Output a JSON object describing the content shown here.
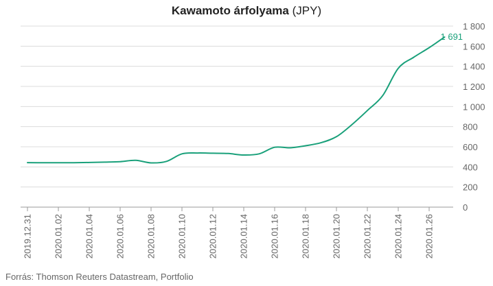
{
  "chart_data": {
    "type": "line",
    "title_bold": "Kawamoto árfolyama",
    "title_unit": "(JPY)",
    "source": "Forrás: Thomson Reuters Datastream, Portfolio",
    "line_color": "#19a07a",
    "grid": true,
    "y_axis_position": "right",
    "ylim": [
      0,
      1800
    ],
    "yticks": [
      0,
      200,
      400,
      600,
      800,
      1000,
      1200,
      1400,
      1600,
      1800
    ],
    "ytick_labels": [
      "0",
      "200",
      "400",
      "600",
      "800",
      "1 000",
      "1 200",
      "1 400",
      "1 600",
      "1 800"
    ],
    "xticks": [
      "2019.12.31",
      "2020.01.02",
      "2020.01.04",
      "2020.01.06",
      "2020.01.08",
      "2020.01.10",
      "2020.01.12",
      "2020.01.14",
      "2020.01.16",
      "2020.01.18",
      "2020.01.20",
      "2020.01.22",
      "2020.01.24",
      "2020.01.26"
    ],
    "last_value_label": "1 691",
    "series": [
      {
        "name": "",
        "x": [
          "2019.12.31",
          "2020.01.01",
          "2020.01.02",
          "2020.01.03",
          "2020.01.04",
          "2020.01.05",
          "2020.01.06",
          "2020.01.07",
          "2020.01.08",
          "2020.01.09",
          "2020.01.10",
          "2020.01.11",
          "2020.01.12",
          "2020.01.13",
          "2020.01.14",
          "2020.01.15",
          "2020.01.16",
          "2020.01.17",
          "2020.01.18",
          "2020.01.19",
          "2020.01.20",
          "2020.01.21",
          "2020.01.22",
          "2020.01.23",
          "2020.01.24",
          "2020.01.25",
          "2020.01.26",
          "2020.01.27"
        ],
        "values": [
          442,
          442,
          442,
          442,
          444,
          447,
          452,
          465,
          440,
          455,
          530,
          538,
          536,
          533,
          518,
          530,
          595,
          590,
          610,
          640,
          700,
          820,
          960,
          1110,
          1380,
          1490,
          1585,
          1691
        ]
      }
    ]
  }
}
